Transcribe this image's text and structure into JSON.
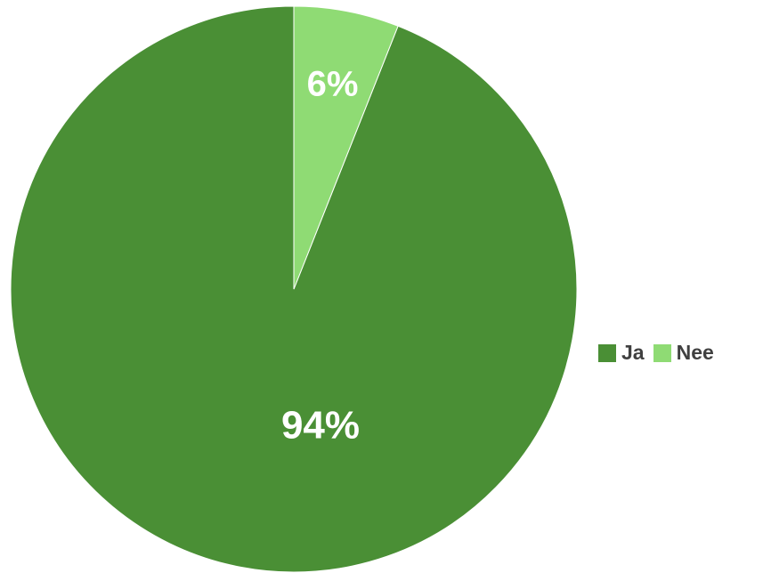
{
  "chart_data": {
    "type": "pie",
    "title": "",
    "categories": [
      "Ja",
      "Nee"
    ],
    "values": [
      94,
      6
    ],
    "labels": [
      "94%",
      "6%"
    ],
    "colors": [
      "#4a8f35",
      "#8fdb74"
    ],
    "start_angle": "top",
    "direction": "counterclockwise",
    "legend": "right"
  }
}
